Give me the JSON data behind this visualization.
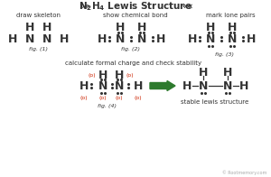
{
  "title_chevron_left": "»»",
  "title_chevron_right": "««",
  "title_text": " N",
  "title_sub1": "2",
  "title_H": "H",
  "title_sub2": "4",
  "title_rest": " Lewis Structure ",
  "bg_color": "#ffffff",
  "text_color": "#333333",
  "red_color": "#cc2200",
  "green_color": "#2d7a2d",
  "watermark_color": "#aaaaaa",
  "label1": "draw skeleton",
  "label2": "show chemical bond",
  "label3": "mark lone pairs",
  "label4": "calculate formal charge and check stability",
  "label5": "stable lewis structure",
  "fig1": "fig. (1)",
  "fig2": "fig. (2)",
  "fig3": "fig. (3)",
  "fig4": "fig. (4)",
  "watermark": "© Rootmemory.com"
}
